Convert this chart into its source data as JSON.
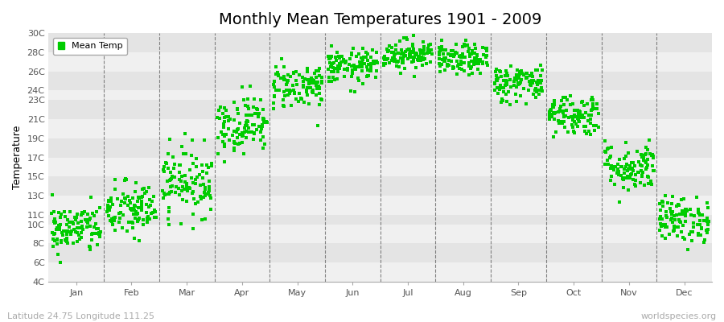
{
  "title": "Monthly Mean Temperatures 1901 - 2009",
  "ylabel": "Temperature",
  "months": [
    "Jan",
    "Feb",
    "Mar",
    "Apr",
    "May",
    "Jun",
    "Jul",
    "Aug",
    "Sep",
    "Oct",
    "Nov",
    "Dec"
  ],
  "month_centers": [
    1,
    2,
    3,
    4,
    5,
    6,
    7,
    8,
    9,
    10,
    11,
    12
  ],
  "mean_temps": [
    9.5,
    11.5,
    14.5,
    20.5,
    24.5,
    26.5,
    27.8,
    27.2,
    24.8,
    21.5,
    16.0,
    10.5
  ],
  "std_temps": [
    1.3,
    1.5,
    1.8,
    1.5,
    1.2,
    0.9,
    0.8,
    0.8,
    1.0,
    1.1,
    1.3,
    1.2
  ],
  "n_years": 109,
  "ylim_min": 4,
  "ylim_max": 30,
  "ytick_labels": [
    "4C",
    "6C",
    "8C",
    "10C",
    "11C",
    "13C",
    "15C",
    "17C",
    "19C",
    "21C",
    "23C",
    "24C",
    "26C",
    "28C",
    "30C"
  ],
  "ytick_vals": [
    4,
    6,
    8,
    10,
    11,
    13,
    15,
    17,
    19,
    21,
    23,
    24,
    26,
    28,
    30
  ],
  "stripe_colors": [
    "#f0f0f0",
    "#e4e4e4"
  ],
  "dot_color": "#00cc00",
  "dot_size": 5,
  "plot_bg_color": "#f0f0f0",
  "vline_color": "#666666",
  "legend_label": "Mean Temp",
  "footer_left": "Latitude 24.75 Longitude 111.25",
  "footer_right": "worldspecies.org",
  "title_fontsize": 14,
  "axis_label_fontsize": 9,
  "tick_fontsize": 8,
  "footer_fontsize": 8
}
